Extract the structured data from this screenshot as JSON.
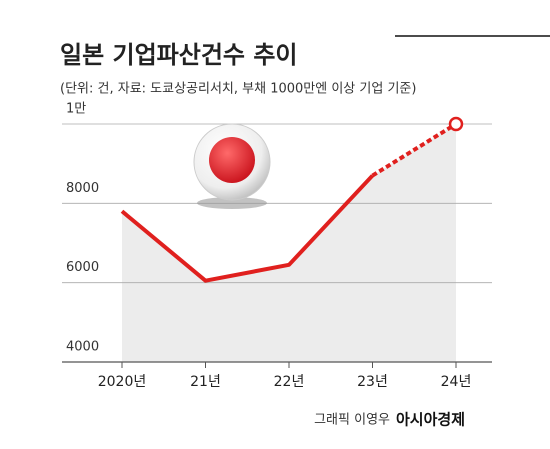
{
  "chart_data": {
    "type": "line",
    "title": "일본 기업파산건수 추이",
    "subtitle": "(단위: 건, 자료: 도쿄상공리서치, 부채 1000만엔 이상 기업 기준)",
    "categories": [
      "2020년",
      "21년",
      "22년",
      "23년",
      "24년"
    ],
    "series": [
      {
        "name": "기업파산건수",
        "color": "#e0201e",
        "values": [
          7800,
          6050,
          6450,
          8700,
          10000
        ]
      }
    ],
    "ylim": [
      4000,
      10000
    ],
    "yticks": [
      4000,
      6000,
      8000,
      {
        "value": 10000,
        "label": "1만"
      }
    ],
    "grid": true,
    "credit": "그래픽 이영우",
    "brand": "아시아경제"
  }
}
